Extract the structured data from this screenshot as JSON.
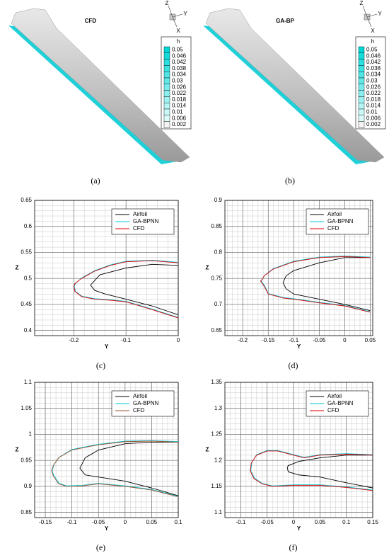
{
  "chart_data": [
    {
      "type": "contour",
      "label": "(a)",
      "title": "CFD",
      "colorbar_title": "h",
      "triad": [
        "Z",
        "Y",
        "X"
      ],
      "levels": [
        0.05,
        0.046,
        0.042,
        0.038,
        0.034,
        0.03,
        0.026,
        0.022,
        0.018,
        0.014,
        0.01,
        0.006,
        0.002
      ],
      "colors": [
        "#00d8d8",
        "#14dcdc",
        "#28e0e0",
        "#3ce3e3",
        "#50e6e6",
        "#64e9e9",
        "#78ecec",
        "#8cefef",
        "#a0f2f2",
        "#b4f5f5",
        "#c8f8f8",
        "#dcfbfb",
        "#f4f4f4"
      ]
    },
    {
      "type": "contour",
      "label": "(b)",
      "title": "GA-BP",
      "colorbar_title": "h",
      "triad": [
        "Z",
        "Y",
        "X"
      ],
      "levels": [
        0.05,
        0.046,
        0.042,
        0.038,
        0.034,
        0.03,
        0.026,
        0.022,
        0.018,
        0.014,
        0.01,
        0.006,
        0.002
      ],
      "colors": [
        "#00d8d8",
        "#14dcdc",
        "#28e0e0",
        "#3ce3e3",
        "#50e6e6",
        "#64e9e9",
        "#78ecec",
        "#8cefef",
        "#a0f2f2",
        "#b4f5f5",
        "#c8f8f8",
        "#dcfbfb",
        "#f4f4f4"
      ]
    },
    {
      "type": "line",
      "label": "(c)",
      "x_label": "Y",
      "y_label": "Z",
      "grid": true,
      "legend": "upper right",
      "xlim": [
        -0.275,
        0
      ],
      "ylim": [
        0.39,
        0.65
      ],
      "xticks": [
        -0.2,
        -0.1,
        0
      ],
      "yticks": [
        0.4,
        0.45,
        0.5,
        0.55,
        0.6,
        0.65
      ],
      "series": [
        {
          "name": "Airfoil",
          "color": "#000000",
          "x": [
            0,
            -0.05,
            -0.1,
            -0.15,
            -0.168,
            -0.16,
            -0.14,
            -0.1,
            -0.05,
            0
          ],
          "values": [
            0.525,
            0.527,
            0.52,
            0.507,
            0.487,
            0.477,
            0.47,
            0.46,
            0.447,
            0.43
          ]
        },
        {
          "name": "GA-BPNN",
          "color": "#00c8d8",
          "x": [
            0,
            -0.05,
            -0.1,
            -0.13,
            -0.16,
            -0.185,
            -0.197,
            -0.199,
            -0.197,
            -0.185,
            -0.16,
            -0.13,
            -0.1,
            -0.05,
            0
          ],
          "values": [
            0.531,
            0.535,
            0.533,
            0.526,
            0.515,
            0.501,
            0.49,
            0.485,
            0.475,
            0.466,
            0.461,
            0.459,
            0.456,
            0.441,
            0.425
          ]
        },
        {
          "name": "CFD",
          "color": "#e00000",
          "x": [
            0,
            -0.05,
            -0.1,
            -0.13,
            -0.16,
            -0.185,
            -0.198,
            -0.2,
            -0.198,
            -0.185,
            -0.16,
            -0.13,
            -0.1,
            -0.05,
            0
          ],
          "values": [
            0.53,
            0.534,
            0.532,
            0.525,
            0.514,
            0.5,
            0.49,
            0.485,
            0.475,
            0.465,
            0.46,
            0.458,
            0.455,
            0.44,
            0.424
          ]
        }
      ]
    },
    {
      "type": "line",
      "label": "(d)",
      "x_label": "Y",
      "y_label": "Z",
      "grid": true,
      "legend": "upper right",
      "xlim": [
        -0.235,
        0.055
      ],
      "ylim": [
        0.64,
        0.9
      ],
      "xticks": [
        -0.2,
        -0.15,
        -0.1,
        -0.05,
        0,
        0.05
      ],
      "yticks": [
        0.65,
        0.7,
        0.75,
        0.8,
        0.85,
        0.9
      ],
      "series": [
        {
          "name": "Airfoil",
          "color": "#000000",
          "x": [
            0.05,
            0,
            -0.05,
            -0.1,
            -0.115,
            -0.121,
            -0.115,
            -0.1,
            -0.05,
            0,
            0.05
          ],
          "values": [
            0.79,
            0.79,
            0.78,
            0.765,
            0.755,
            0.742,
            0.73,
            0.72,
            0.71,
            0.7,
            0.688
          ]
        },
        {
          "name": "GA-BPNN",
          "color": "#00c8d8",
          "x": [
            0.05,
            0,
            -0.05,
            -0.1,
            -0.14,
            -0.157,
            -0.161,
            -0.164,
            -0.157,
            -0.15,
            -0.12,
            -0.1,
            -0.05,
            0,
            0.05
          ],
          "values": [
            0.791,
            0.793,
            0.791,
            0.783,
            0.769,
            0.756,
            0.749,
            0.745,
            0.736,
            0.721,
            0.713,
            0.711,
            0.704,
            0.698,
            0.686
          ]
        },
        {
          "name": "CFD",
          "color": "#e00000",
          "x": [
            0.05,
            0,
            -0.05,
            -0.1,
            -0.14,
            -0.158,
            -0.162,
            -0.165,
            -0.158,
            -0.15,
            -0.12,
            -0.1,
            -0.05,
            0,
            0.05
          ],
          "values": [
            0.79,
            0.792,
            0.79,
            0.782,
            0.768,
            0.755,
            0.748,
            0.745,
            0.735,
            0.72,
            0.712,
            0.71,
            0.703,
            0.697,
            0.685
          ]
        }
      ]
    },
    {
      "type": "line",
      "label": "(e)",
      "x_label": "Y",
      "y_label": "Z",
      "grid": true,
      "legend": "upper right",
      "xlim": [
        -0.17,
        0.1
      ],
      "ylim": [
        0.84,
        1.1
      ],
      "xticks": [
        -0.15,
        -0.1,
        -0.05,
        0,
        0.05,
        0.1
      ],
      "yticks": [
        0.85,
        0.9,
        0.95,
        1,
        1.05,
        1.1
      ],
      "series": [
        {
          "name": "Airfoil",
          "color": "#000000",
          "x": [
            0.1,
            0.05,
            0,
            -0.05,
            -0.075,
            -0.085,
            -0.075,
            -0.05,
            0,
            0.05,
            0.1
          ],
          "values": [
            0.985,
            0.985,
            0.982,
            0.97,
            0.955,
            0.935,
            0.922,
            0.918,
            0.91,
            0.897,
            0.882
          ]
        },
        {
          "name": "GA-BPNN",
          "color": "#00c8d8",
          "x": [
            0.1,
            0.05,
            0,
            -0.05,
            -0.1,
            -0.124,
            -0.134,
            -0.137,
            -0.134,
            -0.124,
            -0.11,
            -0.08,
            -0.05,
            0,
            0.05,
            0.1
          ],
          "values": [
            0.986,
            0.988,
            0.987,
            0.981,
            0.971,
            0.956,
            0.941,
            0.93,
            0.921,
            0.906,
            0.901,
            0.902,
            0.906,
            0.901,
            0.894,
            0.881
          ]
        },
        {
          "name": "CFD",
          "color": "#a0522d",
          "x": [
            0.1,
            0.05,
            0,
            -0.05,
            -0.1,
            -0.125,
            -0.135,
            -0.138,
            -0.135,
            -0.125,
            -0.11,
            -0.08,
            -0.05,
            0,
            0.05,
            0.1
          ],
          "values": [
            0.985,
            0.987,
            0.986,
            0.98,
            0.97,
            0.955,
            0.94,
            0.93,
            0.92,
            0.905,
            0.9,
            0.901,
            0.905,
            0.9,
            0.893,
            0.88
          ]
        }
      ]
    },
    {
      "type": "line",
      "label": "(f)",
      "x_label": "Y",
      "y_label": "Z",
      "grid": true,
      "legend": "upper right",
      "xlim": [
        -0.13,
        0.15
      ],
      "ylim": [
        1.09,
        1.35
      ],
      "xticks": [
        -0.1,
        -0.05,
        0,
        0.05,
        0.1,
        0.15
      ],
      "yticks": [
        1.1,
        1.15,
        1.2,
        1.25,
        1.3,
        1.35
      ],
      "series": [
        {
          "name": "Airfoil",
          "color": "#000000",
          "x": [
            0.15,
            0.1,
            0.05,
            0.01,
            -0.01,
            -0.012,
            -0.01,
            0.01,
            0.05,
            0.1,
            0.15
          ],
          "values": [
            1.21,
            1.21,
            1.205,
            1.198,
            1.19,
            1.186,
            1.178,
            1.172,
            1.168,
            1.157,
            1.147
          ]
        },
        {
          "name": "GA-BPNN",
          "color": "#00c8d8",
          "x": [
            0.15,
            0.1,
            0.05,
            0.02,
            0,
            -0.03,
            -0.05,
            -0.07,
            -0.079,
            -0.081,
            -0.074,
            -0.06,
            -0.04,
            0,
            0.05,
            0.1,
            0.15
          ],
          "values": [
            1.211,
            1.213,
            1.211,
            1.206,
            1.211,
            1.219,
            1.219,
            1.211,
            1.196,
            1.18,
            1.166,
            1.156,
            1.151,
            1.153,
            1.153,
            1.149,
            1.143
          ]
        },
        {
          "name": "CFD",
          "color": "#e00000",
          "x": [
            0.15,
            0.1,
            0.05,
            0.02,
            0,
            -0.03,
            -0.05,
            -0.07,
            -0.08,
            -0.082,
            -0.075,
            -0.06,
            -0.04,
            0,
            0.05,
            0.1,
            0.15
          ],
          "values": [
            1.21,
            1.212,
            1.21,
            1.205,
            1.21,
            1.218,
            1.218,
            1.21,
            1.195,
            1.18,
            1.165,
            1.155,
            1.15,
            1.152,
            1.152,
            1.148,
            1.142
          ]
        }
      ]
    }
  ]
}
